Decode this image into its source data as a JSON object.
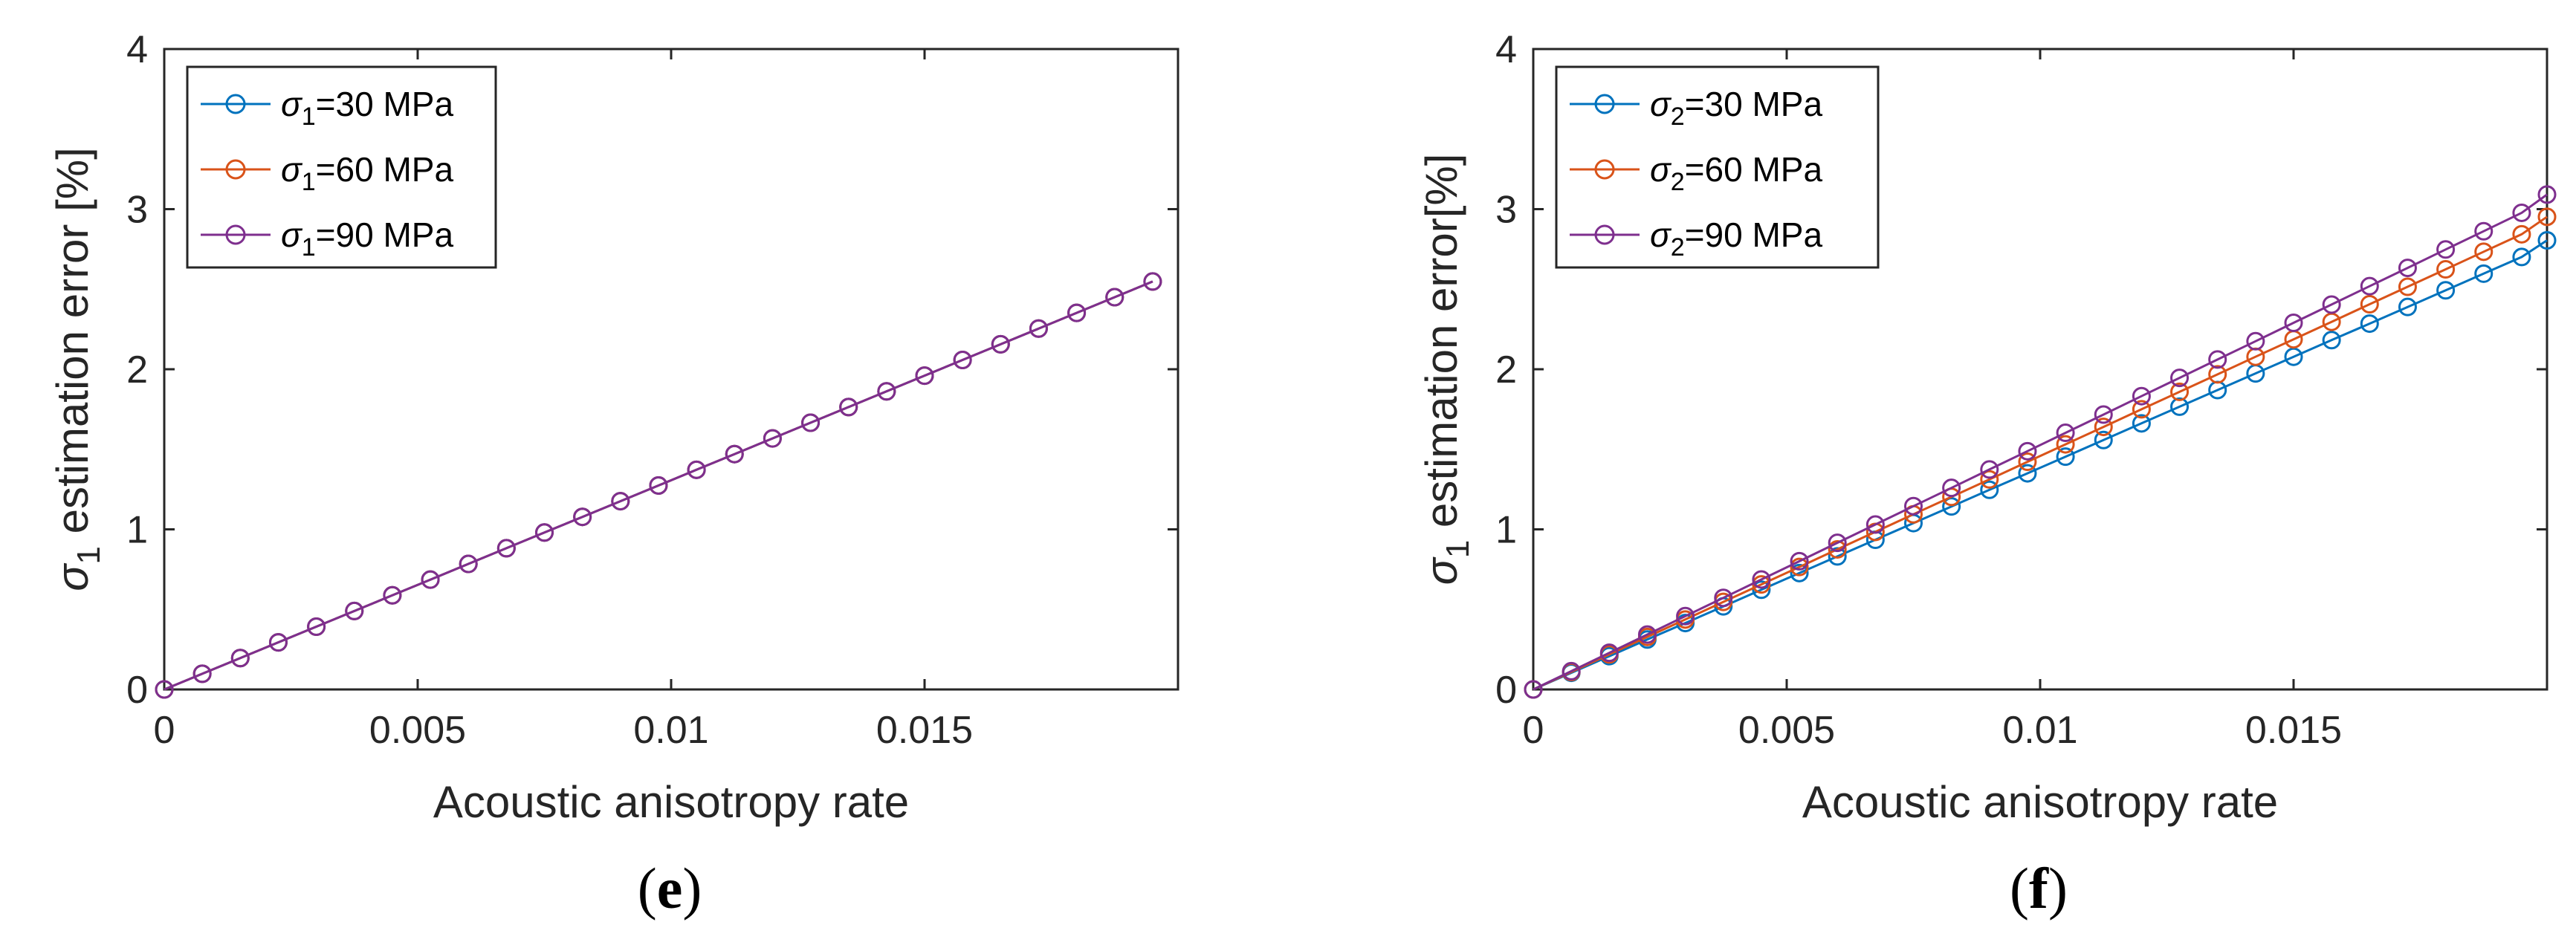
{
  "colors": {
    "series_30": "#0072BD",
    "series_60": "#D95319",
    "series_90": "#7E2F8E",
    "axis": "#262626",
    "background": "#ffffff"
  },
  "chart_data": [
    {
      "panel_label": "e",
      "type": "line",
      "marker": "circle",
      "ylabel_prefix": "σ",
      "ylabel_subscript": "1",
      "ylabel_text": " estimation error [%]",
      "xlabel": "Acoustic anisotropy rate",
      "xlim": [
        0,
        0.02
      ],
      "ylim": [
        0,
        4
      ],
      "xticks": [
        0,
        0.005,
        0.01,
        0.015
      ],
      "xtick_labels": [
        "0",
        "0.005",
        "0.01",
        "0.015"
      ],
      "yticks": [
        0,
        1,
        2,
        3,
        4
      ],
      "ytick_labels": [
        "0",
        "1",
        "2",
        "3",
        "4"
      ],
      "grid": false,
      "legend_position": "top-left",
      "x": [
        0,
        0.00075,
        0.0015,
        0.00225,
        0.003,
        0.00375,
        0.0045,
        0.00525,
        0.006,
        0.00675,
        0.0075,
        0.00825,
        0.009,
        0.00975,
        0.0105,
        0.01125,
        0.012,
        0.01275,
        0.0135,
        0.01425,
        0.015,
        0.01575,
        0.0165,
        0.01725,
        0.018,
        0.01875,
        0.0195
      ],
      "series": [
        {
          "legend_symbol": "σ",
          "legend_subscript": "1",
          "legend_text": "=30 MPa",
          "color_key": "series_30",
          "values": [
            0,
            0.098,
            0.196,
            0.294,
            0.392,
            0.49,
            0.588,
            0.686,
            0.784,
            0.882,
            0.98,
            1.078,
            1.176,
            1.274,
            1.372,
            1.47,
            1.568,
            1.666,
            1.764,
            1.862,
            1.96,
            2.058,
            2.156,
            2.254,
            2.352,
            2.45,
            2.548
          ]
        },
        {
          "legend_symbol": "σ",
          "legend_subscript": "1",
          "legend_text": "=60 MPa",
          "color_key": "series_60",
          "values": [
            0,
            0.098,
            0.196,
            0.294,
            0.392,
            0.49,
            0.588,
            0.686,
            0.784,
            0.882,
            0.98,
            1.078,
            1.176,
            1.274,
            1.372,
            1.47,
            1.568,
            1.666,
            1.764,
            1.862,
            1.96,
            2.058,
            2.156,
            2.254,
            2.352,
            2.45,
            2.548
          ]
        },
        {
          "legend_symbol": "σ",
          "legend_subscript": "1",
          "legend_text": "=90 MPa",
          "color_key": "series_90",
          "values": [
            0,
            0.098,
            0.196,
            0.294,
            0.392,
            0.49,
            0.588,
            0.686,
            0.784,
            0.882,
            0.98,
            1.078,
            1.176,
            1.274,
            1.372,
            1.47,
            1.568,
            1.666,
            1.764,
            1.862,
            1.96,
            2.058,
            2.156,
            2.254,
            2.352,
            2.45,
            2.548
          ]
        }
      ]
    },
    {
      "panel_label": "f",
      "type": "line",
      "marker": "circle",
      "ylabel_prefix": "σ",
      "ylabel_subscript": "1",
      "ylabel_text": " estimation error[%]",
      "xlabel": "Acoustic anisotropy rate",
      "xlim": [
        0,
        0.02
      ],
      "ylim": [
        0,
        4
      ],
      "xticks": [
        0,
        0.005,
        0.01,
        0.015
      ],
      "xtick_labels": [
        "0",
        "0.005",
        "0.01",
        "0.015"
      ],
      "yticks": [
        0,
        1,
        2,
        3,
        4
      ],
      "ytick_labels": [
        "0",
        "1",
        "2",
        "3",
        "4"
      ],
      "grid": false,
      "legend_position": "top-left",
      "x": [
        0,
        0.00075,
        0.0015,
        0.00225,
        0.003,
        0.00375,
        0.0045,
        0.00525,
        0.006,
        0.00675,
        0.0075,
        0.00825,
        0.009,
        0.00975,
        0.0105,
        0.01125,
        0.012,
        0.01275,
        0.0135,
        0.01425,
        0.015,
        0.01575,
        0.0165,
        0.01725,
        0.018,
        0.01875,
        0.0195,
        0.02
      ],
      "series": [
        {
          "legend_symbol": "σ",
          "legend_subscript": "2",
          "legend_text": "=30 MPa",
          "color_key": "series_30",
          "values": [
            0,
            0.104,
            0.208,
            0.312,
            0.415,
            0.519,
            0.623,
            0.727,
            0.831,
            0.935,
            1.039,
            1.143,
            1.247,
            1.35,
            1.454,
            1.558,
            1.662,
            1.766,
            1.87,
            1.974,
            2.078,
            2.182,
            2.285,
            2.389,
            2.493,
            2.597,
            2.701,
            2.805
          ]
        },
        {
          "legend_symbol": "σ",
          "legend_subscript": "2",
          "legend_text": "=60 MPa",
          "color_key": "series_60",
          "values": [
            0,
            0.109,
            0.219,
            0.328,
            0.437,
            0.547,
            0.656,
            0.765,
            0.875,
            0.984,
            1.094,
            1.203,
            1.312,
            1.422,
            1.531,
            1.64,
            1.75,
            1.859,
            1.968,
            2.078,
            2.187,
            2.296,
            2.406,
            2.515,
            2.624,
            2.734,
            2.843,
            2.952
          ]
        },
        {
          "legend_symbol": "σ",
          "legend_subscript": "2",
          "legend_text": "=90 MPa",
          "color_key": "series_90",
          "values": [
            0,
            0.114,
            0.229,
            0.343,
            0.458,
            0.572,
            0.687,
            0.801,
            0.916,
            1.03,
            1.145,
            1.259,
            1.374,
            1.488,
            1.603,
            1.717,
            1.832,
            1.946,
            2.061,
            2.175,
            2.29,
            2.404,
            2.519,
            2.633,
            2.748,
            2.862,
            2.977,
            3.091
          ]
        }
      ]
    }
  ]
}
